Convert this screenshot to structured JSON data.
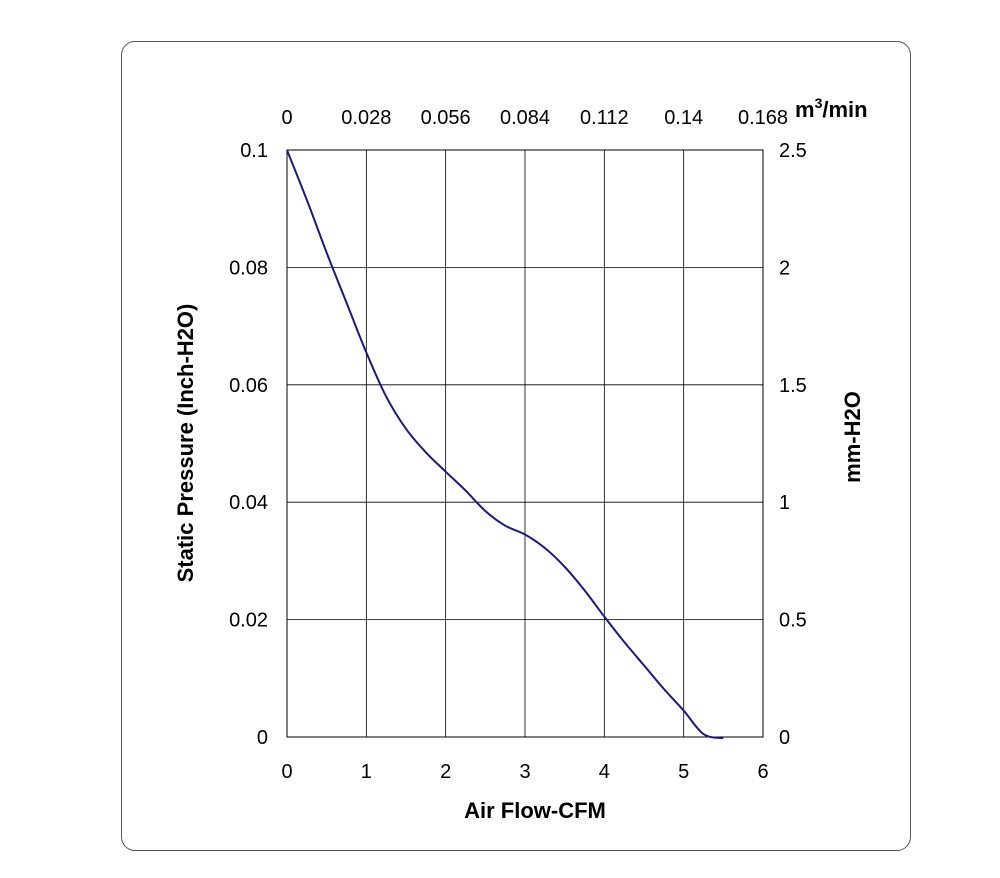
{
  "chart_data": {
    "type": "line",
    "title": "",
    "xlabel": "Air Flow-CFM",
    "ylabel": "Static Pressure (Inch-H2O)",
    "x2label_base": "m",
    "x2label_sup": "3",
    "x2label_rest": "/min",
    "y2label": "mm-H2O",
    "xlim": [
      0,
      6
    ],
    "ylim": [
      0,
      0.1
    ],
    "y2lim": [
      0,
      2.5
    ],
    "x_ticks": [
      "0",
      "1",
      "2",
      "3",
      "4",
      "5",
      "6"
    ],
    "y_ticks": [
      "0",
      "0.02",
      "0.04",
      "0.06",
      "0.08",
      "0.1"
    ],
    "x2_ticks": [
      "0",
      "0.028",
      "0.056",
      "0.084",
      "0.112",
      "0.14",
      "0.168"
    ],
    "y2_ticks": [
      "0",
      "0.5",
      "1",
      "1.5",
      "2",
      "2.5"
    ],
    "grid": true,
    "line_color": "#1a1a7a",
    "series": [
      {
        "x": [
          0,
          0.25,
          0.5,
          0.75,
          1,
          1.25,
          1.5,
          1.75,
          2,
          2.25,
          2.5,
          2.75,
          3,
          3.25,
          3.5,
          3.75,
          4,
          4.25,
          4.5,
          4.75,
          5,
          5.25,
          5.5
        ],
        "values": [
          0.1,
          0.0915,
          0.0825,
          0.074,
          0.0655,
          0.058,
          0.0525,
          0.0485,
          0.0452,
          0.042,
          0.0385,
          0.036,
          0.0345,
          0.0322,
          0.029,
          0.025,
          0.0205,
          0.0162,
          0.0122,
          0.0082,
          0.0045,
          0.0005,
          -0.0002
        ]
      }
    ]
  }
}
